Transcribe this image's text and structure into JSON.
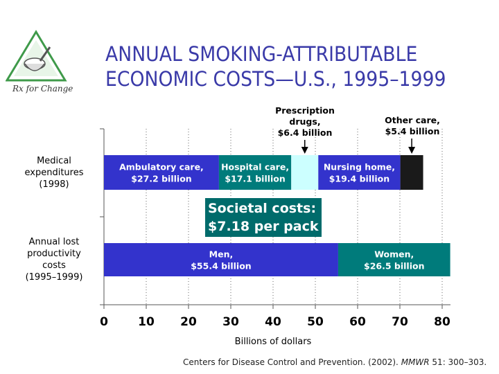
{
  "logo": {
    "text": "Rx for Change"
  },
  "title": {
    "line1": "ANNUAL SMOKING-ATTRIBUTABLE",
    "line2": "ECONOMIC COSTS—U.S., 1995–1999"
  },
  "citation": {
    "before": "Centers for Disease Control and Prevention. (2002). ",
    "journal": "MMWR",
    "after": " 51: 300–303."
  },
  "chart_data": {
    "type": "bar",
    "orientation": "horizontal",
    "stacked": true,
    "xlabel": "Billions of dollars",
    "xlim": [
      0,
      80
    ],
    "xticks": [
      0,
      10,
      20,
      30,
      40,
      50,
      60,
      70,
      80
    ],
    "grid": "vertical dotted",
    "categories": [
      {
        "label_lines": [
          "Medical",
          "expenditures",
          "(1998)"
        ]
      },
      {
        "label_lines": [
          "Annual lost",
          "productivity",
          "costs",
          "(1995–1999)"
        ]
      }
    ],
    "rows": [
      {
        "segments": [
          {
            "value": 27.2,
            "color": "#3333cc",
            "label_lines": [
              "Ambulatory care,",
              "$27.2 billion"
            ]
          },
          {
            "value": 17.1,
            "color": "#007b7b",
            "label_lines": [
              "Hospital care,",
              "$17.1 billion"
            ]
          },
          {
            "value": 6.4,
            "color": "#ccffff",
            "label_lines": []
          },
          {
            "value": 19.4,
            "color": "#3333cc",
            "label_lines": [
              "Nursing home,",
              "$19.4 billion"
            ]
          },
          {
            "value": 5.4,
            "color": "#1a1a1a",
            "label_lines": []
          }
        ]
      },
      {
        "segments": [
          {
            "value": 55.4,
            "color": "#3333cc",
            "label_lines": [
              "Men,",
              "$55.4 billion"
            ]
          },
          {
            "value": 26.5,
            "color": "#007b7b",
            "label_lines": [
              "Women,",
              "$26.5 billion"
            ]
          }
        ]
      }
    ],
    "callouts": [
      {
        "lines": [
          "Prescription",
          "drugs,",
          "$6.4 billion"
        ],
        "row": 0,
        "segment": 2
      },
      {
        "lines": [
          "Other care,",
          "$5.4 billion"
        ],
        "row": 0,
        "segment": 4
      }
    ],
    "annotation": {
      "lines": [
        "Societal costs:",
        "$7.18 per pack"
      ]
    }
  },
  "colors": {
    "title": "#3a3aa8",
    "annotation_bg": "#006b6b",
    "logo_green": "#3f9a4a"
  }
}
